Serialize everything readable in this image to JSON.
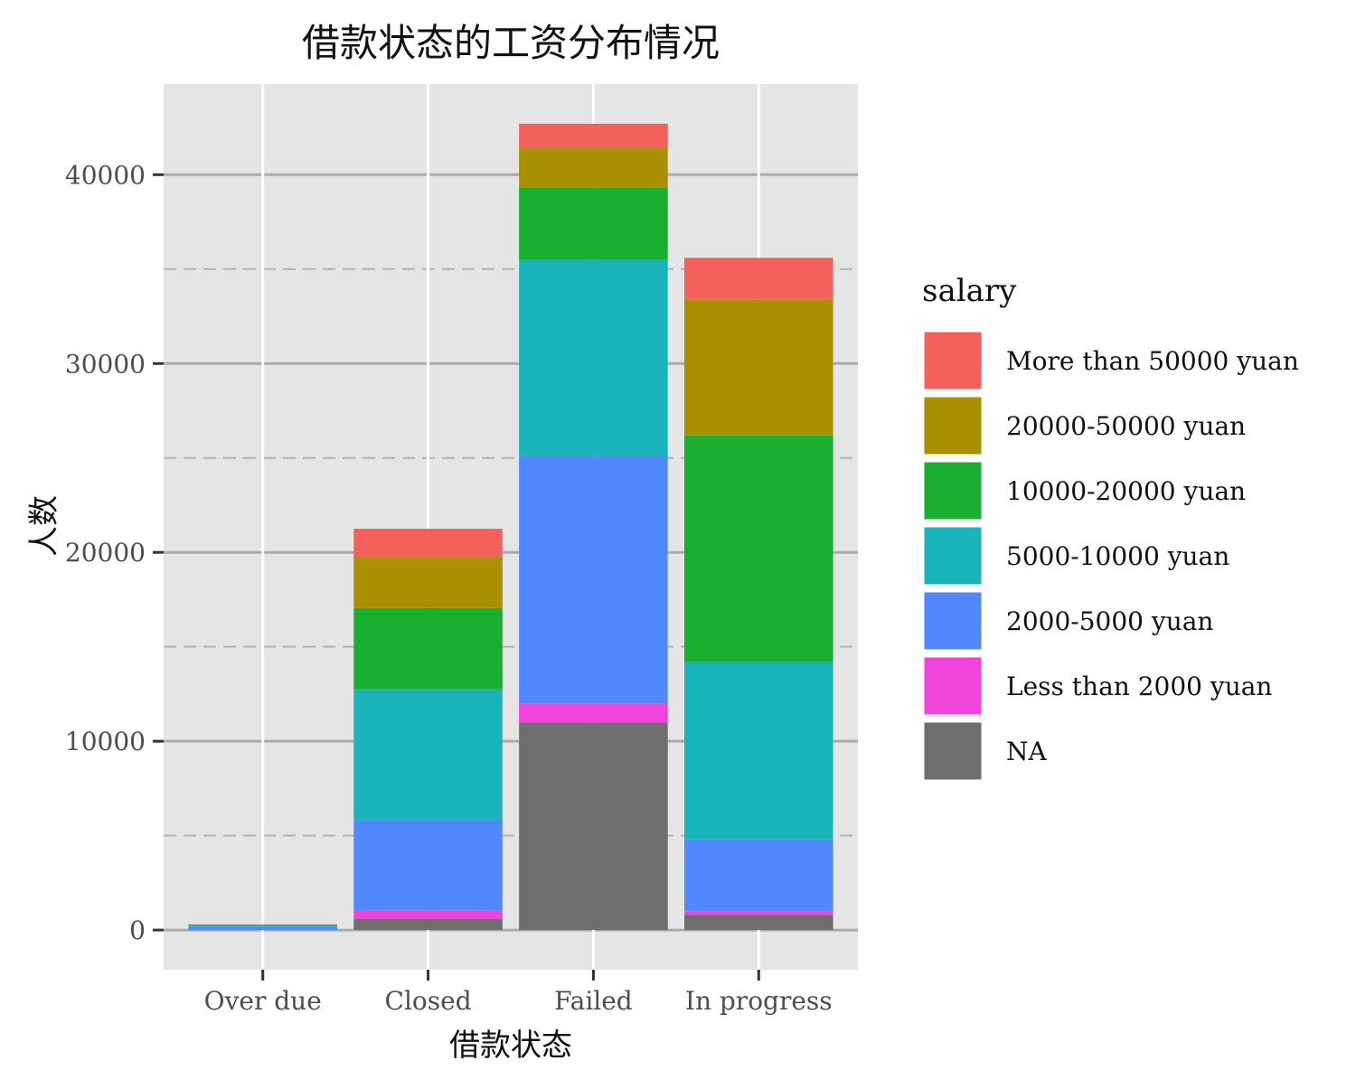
{
  "chart_data": {
    "type": "bar",
    "stacked": true,
    "title": "借款状态的工资分布情况",
    "xlabel": "借款状态",
    "ylabel": "人数",
    "categories": [
      "Over due",
      "Closed",
      "Failed",
      "In progress"
    ],
    "ylim": [
      -2100,
      44800
    ],
    "yticks": [
      0,
      10000,
      20000,
      30000,
      40000
    ],
    "grid": true,
    "legend": {
      "title": "salary",
      "placement": "right"
    },
    "series": [
      {
        "name": "NA",
        "color": "#6e6e6e",
        "values": [
          0,
          600,
          11000,
          800
        ]
      },
      {
        "name": "Less than 2000 yuan",
        "color": "#f043d9",
        "values": [
          0,
          450,
          1000,
          200
        ]
      },
      {
        "name": "2000-5000 yuan",
        "color": "#4f88ff",
        "values": [
          180,
          4800,
          13100,
          3800
        ]
      },
      {
        "name": "5000-10000 yuan",
        "color": "#19b4b9",
        "values": [
          60,
          6900,
          10400,
          9400
        ]
      },
      {
        "name": "10000-20000 yuan",
        "color": "#19b02f",
        "values": [
          30,
          4300,
          3800,
          12000
        ]
      },
      {
        "name": "20000-50000 yuan",
        "color": "#a89000",
        "values": [
          20,
          2700,
          2100,
          7200
        ]
      },
      {
        "name": "More than 50000 yuan",
        "color": "#f4605c",
        "values": [
          10,
          1500,
          1300,
          2200
        ]
      }
    ]
  }
}
